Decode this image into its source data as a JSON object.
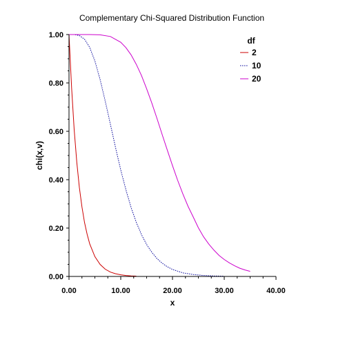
{
  "chart_data": {
    "type": "line",
    "title": "Complementary Chi-Squared Distribution Function",
    "xlabel": "x",
    "ylabel": "chi(x,v)",
    "xlim": [
      0,
      40
    ],
    "ylim": [
      0,
      1
    ],
    "x_ticks": [
      "0.00",
      "10.00",
      "20.00",
      "30.00",
      "40.00"
    ],
    "y_ticks": [
      "0.00",
      "0.20",
      "0.40",
      "0.60",
      "0.80",
      "1.00"
    ],
    "grid": false,
    "legend": {
      "title": "df",
      "position": "top-right"
    },
    "series": [
      {
        "name": "2",
        "color": "#cc0000",
        "style": "solid",
        "x": [
          0,
          0.5,
          1,
          1.5,
          2,
          2.5,
          3,
          3.5,
          4,
          5,
          6,
          7,
          8,
          9,
          10,
          11,
          12,
          13
        ],
        "y": [
          1.0,
          0.779,
          0.607,
          0.472,
          0.368,
          0.287,
          0.223,
          0.174,
          0.135,
          0.082,
          0.05,
          0.03,
          0.018,
          0.011,
          0.007,
          0.004,
          0.002,
          0.0015
        ]
      },
      {
        "name": "10",
        "color": "#000099",
        "style": "dotted",
        "x": [
          0,
          1,
          2,
          3,
          4,
          5,
          6,
          7,
          8,
          9,
          10,
          11,
          12,
          13,
          14,
          15,
          16,
          17,
          18,
          19,
          20,
          22,
          24,
          26,
          28,
          30
        ],
        "y": [
          1.0,
          1.0,
          0.996,
          0.981,
          0.947,
          0.891,
          0.815,
          0.725,
          0.629,
          0.532,
          0.44,
          0.358,
          0.285,
          0.224,
          0.173,
          0.132,
          0.1,
          0.074,
          0.055,
          0.04,
          0.029,
          0.015,
          0.008,
          0.004,
          0.002,
          0.001
        ]
      },
      {
        "name": "20",
        "color": "#cc00cc",
        "style": "solid",
        "x": [
          0,
          2,
          4,
          6,
          8,
          10,
          11,
          12,
          13,
          14,
          15,
          16,
          17,
          18,
          19,
          20,
          21,
          22,
          23,
          24,
          25,
          26,
          27,
          28,
          29,
          30,
          31,
          32,
          33,
          34,
          35
        ],
        "y": [
          1.0,
          1.0,
          1.0,
          0.999,
          0.992,
          0.968,
          0.946,
          0.916,
          0.877,
          0.831,
          0.776,
          0.717,
          0.653,
          0.587,
          0.522,
          0.458,
          0.397,
          0.341,
          0.29,
          0.246,
          0.201,
          0.164,
          0.134,
          0.109,
          0.087,
          0.07,
          0.056,
          0.044,
          0.034,
          0.027,
          0.021
        ]
      }
    ]
  }
}
